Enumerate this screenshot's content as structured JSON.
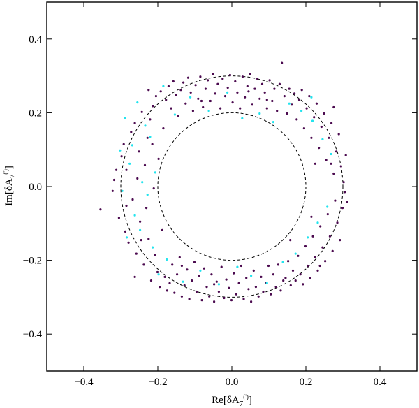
{
  "chart_data": {
    "type": "scatter",
    "xlabel": "Re[δA7(')]",
    "ylabel": "Im[δA7(')]",
    "xlim": [
      -0.5,
      0.5
    ],
    "ylim": [
      -0.5,
      0.5
    ],
    "grid": false,
    "x_ticks": [
      -0.4,
      -0.2,
      0.0,
      0.2,
      0.4
    ],
    "y_ticks": [
      -0.4,
      -0.2,
      0.0,
      0.2,
      0.4
    ],
    "x_tick_labels": [
      "−0.4",
      "−0.2",
      "0.0",
      "0.2",
      "0.4"
    ],
    "y_tick_labels": [
      "−0.4",
      "−0.2",
      "0.0",
      "0.2",
      "0.4"
    ],
    "reference_circles": [
      {
        "center": [
          0,
          0
        ],
        "radius": 0.2,
        "style": "dashed",
        "color": "#000000"
      },
      {
        "center": [
          0,
          0
        ],
        "radius": 0.3,
        "style": "dashed",
        "color": "#000000"
      }
    ],
    "series": [
      {
        "color": "#4b0a4f",
        "points": [
          [
            -0.355,
            -0.062
          ],
          [
            -0.322,
            -0.012
          ],
          [
            -0.318,
            0.018
          ],
          [
            -0.305,
            -0.085
          ],
          [
            -0.298,
            0.082
          ],
          [
            -0.292,
            0.115
          ],
          [
            -0.288,
            -0.122
          ],
          [
            -0.285,
            0.045
          ],
          [
            -0.279,
            -0.152
          ],
          [
            -0.272,
            0.148
          ],
          [
            -0.268,
            -0.035
          ],
          [
            -0.262,
            0.172
          ],
          [
            -0.258,
            -0.182
          ],
          [
            -0.255,
            0.022
          ],
          [
            -0.251,
            0.095
          ],
          [
            -0.248,
            -0.095
          ],
          [
            -0.243,
            0.202
          ],
          [
            -0.238,
            -0.212
          ],
          [
            -0.235,
            0.058
          ],
          [
            -0.231,
            -0.058
          ],
          [
            -0.228,
            0.132
          ],
          [
            -0.225,
            -0.142
          ],
          [
            -0.221,
            0.182
          ],
          [
            -0.218,
            -0.255
          ],
          [
            -0.214,
            0.218
          ],
          [
            -0.211,
            -0.005
          ],
          [
            -0.208,
            -0.185
          ],
          [
            -0.205,
            0.245
          ],
          [
            -0.201,
            -0.232
          ],
          [
            -0.198,
            0.075
          ],
          [
            -0.195,
            -0.272
          ],
          [
            -0.192,
            0.258
          ],
          [
            -0.188,
            -0.118
          ],
          [
            -0.185,
            0.158
          ],
          [
            -0.181,
            -0.245
          ],
          [
            -0.178,
            0.235
          ],
          [
            -0.175,
            -0.282
          ],
          [
            -0.171,
            0.272
          ],
          [
            -0.168,
            -0.262
          ],
          [
            -0.164,
            0.212
          ],
          [
            -0.161,
            -0.212
          ],
          [
            -0.158,
            0.285
          ],
          [
            -0.155,
            -0.288
          ],
          [
            -0.151,
            0.248
          ],
          [
            -0.148,
            -0.238
          ],
          [
            -0.145,
            0.192
          ],
          [
            -0.141,
            -0.192
          ],
          [
            -0.138,
            0.262
          ],
          [
            -0.135,
            -0.298
          ],
          [
            -0.131,
            0.282
          ],
          [
            -0.128,
            -0.268
          ],
          [
            -0.125,
            0.225
          ],
          [
            -0.121,
            -0.225
          ],
          [
            -0.118,
            0.295
          ],
          [
            -0.115,
            -0.305
          ],
          [
            -0.111,
            0.255
          ],
          [
            -0.108,
            -0.255
          ],
          [
            -0.105,
            0.205
          ],
          [
            -0.101,
            -0.205
          ],
          [
            -0.098,
            0.275
          ],
          [
            -0.095,
            -0.285
          ],
          [
            -0.091,
            0.238
          ],
          [
            -0.088,
            -0.242
          ],
          [
            -0.085,
            0.298
          ],
          [
            -0.081,
            -0.308
          ],
          [
            -0.078,
            0.215
          ],
          [
            -0.075,
            -0.222
          ],
          [
            -0.071,
            0.265
          ],
          [
            -0.068,
            -0.272
          ],
          [
            -0.065,
            0.288
          ],
          [
            -0.061,
            -0.298
          ],
          [
            -0.058,
            0.232
          ],
          [
            -0.055,
            -0.238
          ],
          [
            -0.051,
            0.305
          ],
          [
            -0.048,
            -0.312
          ],
          [
            -0.045,
            0.252
          ],
          [
            -0.041,
            -0.258
          ],
          [
            -0.038,
            0.278
          ],
          [
            -0.035,
            -0.285
          ],
          [
            -0.031,
            0.212
          ],
          [
            -0.028,
            -0.218
          ],
          [
            -0.025,
            0.292
          ],
          [
            -0.021,
            -0.302
          ],
          [
            -0.018,
            0.245
          ],
          [
            -0.015,
            -0.252
          ],
          [
            -0.011,
            0.268
          ],
          [
            -0.008,
            -0.275
          ],
          [
            -0.005,
            0.302
          ],
          [
            -0.001,
            -0.308
          ],
          [
            0.002,
            0.228
          ],
          [
            0.005,
            -0.235
          ],
          [
            0.009,
            0.285
          ],
          [
            0.012,
            -0.292
          ],
          [
            0.015,
            0.255
          ],
          [
            0.019,
            -0.262
          ],
          [
            0.022,
            0.212
          ],
          [
            0.025,
            -0.215
          ],
          [
            0.029,
            0.298
          ],
          [
            0.032,
            -0.305
          ],
          [
            0.035,
            0.242
          ],
          [
            0.039,
            -0.248
          ],
          [
            0.042,
            0.272
          ],
          [
            0.045,
            -0.278
          ],
          [
            0.049,
            0.305
          ],
          [
            0.052,
            -0.312
          ],
          [
            0.055,
            0.222
          ],
          [
            0.059,
            -0.228
          ],
          [
            0.062,
            0.265
          ],
          [
            0.065,
            -0.272
          ],
          [
            0.069,
            0.292
          ],
          [
            0.072,
            -0.298
          ],
          [
            0.075,
            0.238
          ],
          [
            0.079,
            -0.245
          ],
          [
            0.082,
            0.278
          ],
          [
            0.085,
            -0.285
          ],
          [
            0.089,
            0.255
          ],
          [
            0.092,
            -0.262
          ],
          [
            0.095,
            0.212
          ],
          [
            0.099,
            -0.215
          ],
          [
            0.102,
            0.288
          ],
          [
            0.105,
            -0.292
          ],
          [
            0.109,
            0.232
          ],
          [
            0.112,
            -0.238
          ],
          [
            0.115,
            0.265
          ],
          [
            0.119,
            -0.272
          ],
          [
            0.122,
            0.205
          ],
          [
            0.125,
            -0.212
          ],
          [
            0.129,
            0.278
          ],
          [
            0.132,
            -0.282
          ],
          [
            0.135,
            0.335
          ],
          [
            0.139,
            -0.255
          ],
          [
            0.142,
            0.245
          ],
          [
            0.145,
            -0.248
          ],
          [
            0.149,
            0.198
          ],
          [
            0.152,
            -0.202
          ],
          [
            0.155,
            0.265
          ],
          [
            0.159,
            -0.268
          ],
          [
            0.162,
            0.222
          ],
          [
            0.165,
            -0.228
          ],
          [
            0.169,
            0.252
          ],
          [
            0.172,
            -0.255
          ],
          [
            0.175,
            0.182
          ],
          [
            0.179,
            -0.188
          ],
          [
            0.182,
            0.235
          ],
          [
            0.185,
            -0.238
          ],
          [
            0.189,
            0.262
          ],
          [
            0.192,
            -0.265
          ],
          [
            0.195,
            0.158
          ],
          [
            0.199,
            -0.162
          ],
          [
            0.202,
            0.212
          ],
          [
            0.205,
            -0.215
          ],
          [
            0.209,
            0.245
          ],
          [
            0.212,
            -0.248
          ],
          [
            0.215,
            0.132
          ],
          [
            0.219,
            -0.135
          ],
          [
            0.222,
            0.188
          ],
          [
            0.225,
            -0.192
          ],
          [
            0.229,
            0.225
          ],
          [
            0.232,
            -0.228
          ],
          [
            0.235,
            0.105
          ],
          [
            0.239,
            -0.108
          ],
          [
            0.242,
            0.162
          ],
          [
            0.245,
            -0.165
          ],
          [
            0.249,
            0.198
          ],
          [
            0.252,
            -0.202
          ],
          [
            0.255,
            0.072
          ],
          [
            0.259,
            -0.075
          ],
          [
            0.262,
            0.132
          ],
          [
            0.265,
            -0.135
          ],
          [
            0.269,
            0.172
          ],
          [
            0.272,
            -0.175
          ],
          [
            0.275,
            0.035
          ],
          [
            0.279,
            -0.038
          ],
          [
            0.282,
            0.095
          ],
          [
            0.285,
            -0.098
          ],
          [
            0.289,
            0.142
          ],
          [
            0.292,
            -0.145
          ],
          [
            0.295,
            0.055
          ],
          [
            0.299,
            -0.058
          ],
          [
            0.302,
            0.012
          ],
          [
            0.305,
            -0.015
          ],
          [
            0.308,
            0.085
          ],
          [
            0.312,
            -0.042
          ],
          [
            -0.262,
            -0.245
          ],
          [
            0.275,
            0.215
          ],
          [
            -0.225,
            0.262
          ],
          [
            0.238,
            -0.215
          ],
          [
            -0.285,
            -0.052
          ],
          [
            0.268,
            0.062
          ],
          [
            -0.312,
            0.045
          ],
          [
            -0.082,
            0.232
          ],
          [
            0.095,
            0.235
          ],
          [
            -0.135,
            -0.215
          ],
          [
            0.158,
            -0.145
          ],
          [
            -0.215,
            0.115
          ],
          [
            0.225,
            0.062
          ],
          [
            -0.245,
            -0.145
          ],
          [
            0.215,
            -0.082
          ],
          [
            -0.048,
            -0.265
          ],
          [
            0.045,
            0.258
          ]
        ]
      },
      {
        "color": "#22e4ee",
        "points": [
          [
            -0.302,
            0.098
          ],
          [
            -0.296,
            -0.012
          ],
          [
            -0.289,
            0.185
          ],
          [
            -0.284,
            -0.138
          ],
          [
            -0.276,
            0.062
          ],
          [
            -0.269,
            0.112
          ],
          [
            -0.262,
            -0.078
          ],
          [
            -0.255,
            0.228
          ],
          [
            -0.248,
            -0.118
          ],
          [
            -0.242,
            0.012
          ],
          [
            -0.234,
            0.165
          ],
          [
            -0.228,
            -0.022
          ],
          [
            -0.221,
            0.135
          ],
          [
            -0.214,
            -0.165
          ],
          [
            -0.207,
            0.038
          ],
          [
            -0.198,
            -0.238
          ],
          [
            -0.176,
            -0.198
          ],
          [
            -0.154,
            0.195
          ],
          [
            -0.132,
            -0.258
          ],
          [
            -0.112,
            0.242
          ],
          [
            -0.085,
            -0.228
          ],
          [
            -0.062,
            0.205
          ],
          [
            -0.035,
            -0.265
          ],
          [
            -0.012,
            0.255
          ],
          [
            0.015,
            -0.218
          ],
          [
            0.028,
            0.185
          ],
          [
            0.052,
            -0.242
          ],
          [
            0.075,
            0.198
          ],
          [
            0.095,
            -0.262
          ],
          [
            0.112,
            0.175
          ],
          [
            0.138,
            -0.205
          ],
          [
            0.155,
            0.225
          ],
          [
            0.172,
            -0.182
          ],
          [
            0.188,
            0.205
          ],
          [
            0.205,
            -0.138
          ],
          [
            0.218,
            0.178
          ],
          [
            0.232,
            -0.098
          ],
          [
            0.245,
            0.128
          ],
          [
            0.258,
            -0.055
          ],
          [
            0.268,
            0.088
          ],
          [
            0.215,
            0.242
          ],
          [
            -0.185,
            0.272
          ]
        ]
      }
    ]
  }
}
